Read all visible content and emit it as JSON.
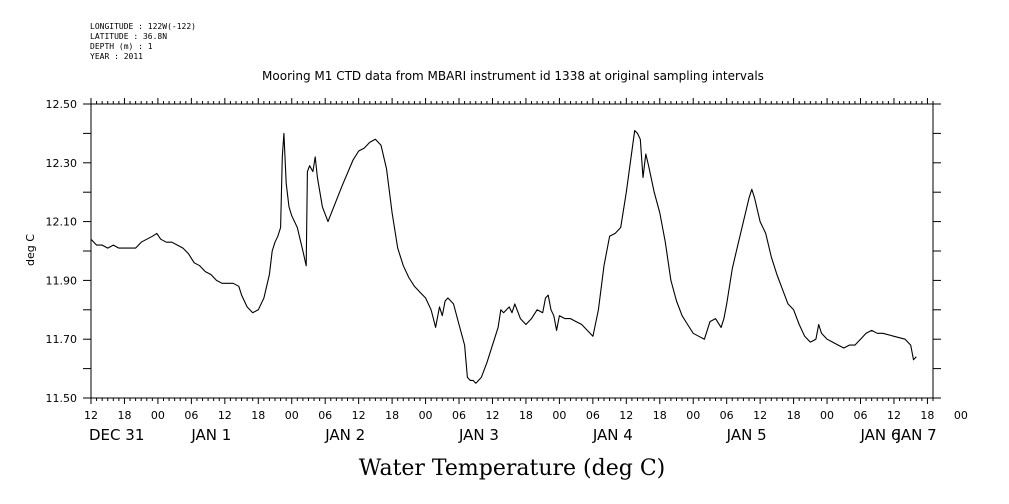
{
  "meta": {
    "longitude": "LONGITUDE : 122W(-122)",
    "latitude": "LATITUDE : 36.8N",
    "depth": "DEPTH (m) : 1",
    "year": "YEAR : 2011"
  },
  "chart_data": {
    "type": "line",
    "title": "Mooring M1 CTD data from MBARI instrument id 1338 at original sampling intervals",
    "xlabel": "Water Temperature (deg C)",
    "ylabel": "deg C",
    "ylim": [
      11.5,
      12.5
    ],
    "yticks": [
      "12.50",
      "12.30",
      "12.10",
      "11.90",
      "11.70",
      "11.50"
    ],
    "x_unit": "hours since 2010-12-31 12:00",
    "xlim": [
      0,
      151
    ],
    "xtick_labels": [
      "12",
      "18",
      "00",
      "06",
      "12",
      "18",
      "00",
      "06",
      "12",
      "18",
      "00",
      "06",
      "12",
      "18",
      "00",
      "06",
      "12",
      "18",
      "00",
      "06",
      "12",
      "18",
      "00",
      "06",
      "12",
      "18",
      "00"
    ],
    "day_labels": [
      "DEC 31",
      "JAN  1",
      "JAN  2",
      "JAN  3",
      "JAN  4",
      "JAN  5",
      "JAN  6",
      "JAN  7"
    ],
    "grid": false,
    "series": [
      {
        "points": [
          [
            0,
            12.04
          ],
          [
            1,
            12.02
          ],
          [
            2,
            12.02
          ],
          [
            3,
            12.01
          ],
          [
            4,
            12.02
          ],
          [
            5,
            12.01
          ],
          [
            6,
            12.01
          ],
          [
            7,
            12.01
          ],
          [
            8,
            12.01
          ],
          [
            9,
            12.03
          ],
          [
            10,
            12.04
          ],
          [
            11,
            12.05
          ],
          [
            11.8,
            12.06
          ],
          [
            12.5,
            12.04
          ],
          [
            13.5,
            12.03
          ],
          [
            14.5,
            12.03
          ],
          [
            15.5,
            12.02
          ],
          [
            16.5,
            12.01
          ],
          [
            17.5,
            11.99
          ],
          [
            18.5,
            11.96
          ],
          [
            19.5,
            11.95
          ],
          [
            20.5,
            11.93
          ],
          [
            21.5,
            11.92
          ],
          [
            22.5,
            11.9
          ],
          [
            23.5,
            11.89
          ],
          [
            24.5,
            11.89
          ],
          [
            25.5,
            11.89
          ],
          [
            26.5,
            11.88
          ],
          [
            27,
            11.85
          ],
          [
            28,
            11.81
          ],
          [
            29,
            11.79
          ],
          [
            30,
            11.8
          ],
          [
            31,
            11.84
          ],
          [
            32,
            11.92
          ],
          [
            32.5,
            12.0
          ],
          [
            33,
            12.03
          ],
          [
            33.5,
            12.05
          ],
          [
            34,
            12.08
          ],
          [
            34.3,
            12.32
          ],
          [
            34.6,
            12.4
          ],
          [
            35,
            12.23
          ],
          [
            35.5,
            12.15
          ],
          [
            36,
            12.12
          ],
          [
            37,
            12.08
          ],
          [
            38,
            12.0
          ],
          [
            38.6,
            11.95
          ],
          [
            38.8,
            12.27
          ],
          [
            39.2,
            12.29
          ],
          [
            39.8,
            12.27
          ],
          [
            40.2,
            12.32
          ],
          [
            40.6,
            12.25
          ],
          [
            41.5,
            12.15
          ],
          [
            42.5,
            12.1
          ],
          [
            45,
            12.22
          ],
          [
            47,
            12.31
          ],
          [
            48,
            12.34
          ],
          [
            49,
            12.35
          ],
          [
            50,
            12.37
          ],
          [
            51,
            12.38
          ],
          [
            52,
            12.36
          ],
          [
            53,
            12.28
          ],
          [
            54,
            12.13
          ],
          [
            55,
            12.01
          ],
          [
            56,
            11.95
          ],
          [
            57,
            11.91
          ],
          [
            58,
            11.88
          ],
          [
            59,
            11.86
          ],
          [
            60,
            11.84
          ],
          [
            61,
            11.8
          ],
          [
            61.8,
            11.74
          ],
          [
            62.5,
            11.81
          ],
          [
            63,
            11.78
          ],
          [
            63.5,
            11.83
          ],
          [
            64,
            11.84
          ],
          [
            65,
            11.82
          ],
          [
            66,
            11.75
          ],
          [
            67,
            11.68
          ],
          [
            67.5,
            11.57
          ],
          [
            68,
            11.56
          ],
          [
            68.5,
            11.56
          ],
          [
            69,
            11.55
          ],
          [
            70,
            11.57
          ],
          [
            71,
            11.62
          ],
          [
            72,
            11.68
          ],
          [
            73,
            11.74
          ],
          [
            73.5,
            11.8
          ],
          [
            74,
            11.79
          ],
          [
            75,
            11.81
          ],
          [
            75.5,
            11.79
          ],
          [
            76,
            11.82
          ],
          [
            77,
            11.77
          ],
          [
            78,
            11.75
          ],
          [
            79,
            11.77
          ],
          [
            80,
            11.8
          ],
          [
            81,
            11.79
          ],
          [
            81.5,
            11.84
          ],
          [
            82,
            11.85
          ],
          [
            82.5,
            11.8
          ],
          [
            83,
            11.78
          ],
          [
            83.5,
            11.73
          ],
          [
            84,
            11.78
          ],
          [
            85,
            11.77
          ],
          [
            86,
            11.77
          ],
          [
            87,
            11.76
          ],
          [
            88,
            11.75
          ],
          [
            89,
            11.73
          ],
          [
            90,
            11.71
          ],
          [
            91,
            11.8
          ],
          [
            92,
            11.95
          ],
          [
            93,
            12.05
          ],
          [
            94,
            12.06
          ],
          [
            95,
            12.08
          ],
          [
            96,
            12.2
          ],
          [
            97,
            12.34
          ],
          [
            97.5,
            12.41
          ],
          [
            98,
            12.4
          ],
          [
            98.5,
            12.38
          ],
          [
            99,
            12.25
          ],
          [
            99.5,
            12.33
          ],
          [
            100,
            12.29
          ],
          [
            101,
            12.2
          ],
          [
            102,
            12.13
          ],
          [
            103,
            12.03
          ],
          [
            104,
            11.9
          ],
          [
            105,
            11.83
          ],
          [
            106,
            11.78
          ],
          [
            107,
            11.75
          ],
          [
            108,
            11.72
          ],
          [
            109,
            11.71
          ],
          [
            110,
            11.7
          ],
          [
            111,
            11.76
          ],
          [
            112,
            11.77
          ],
          [
            113,
            11.74
          ],
          [
            113.5,
            11.77
          ],
          [
            114,
            11.82
          ],
          [
            115,
            11.94
          ],
          [
            116,
            12.02
          ],
          [
            117,
            12.1
          ],
          [
            118,
            12.18
          ],
          [
            118.5,
            12.21
          ],
          [
            119,
            12.18
          ],
          [
            120,
            12.1
          ],
          [
            121,
            12.06
          ],
          [
            122,
            11.98
          ],
          [
            123,
            11.92
          ],
          [
            124,
            11.87
          ],
          [
            125,
            11.82
          ],
          [
            126,
            11.8
          ],
          [
            127,
            11.75
          ],
          [
            128,
            11.71
          ],
          [
            129,
            11.69
          ],
          [
            130,
            11.7
          ],
          [
            130.5,
            11.75
          ],
          [
            131,
            11.72
          ],
          [
            132,
            11.7
          ],
          [
            133,
            11.69
          ],
          [
            134,
            11.68
          ],
          [
            135,
            11.67
          ],
          [
            136,
            11.68
          ],
          [
            137,
            11.68
          ],
          [
            138,
            11.7
          ],
          [
            139,
            11.72
          ],
          [
            140,
            11.73
          ],
          [
            141,
            11.72
          ],
          [
            142,
            11.72
          ],
          [
            144,
            11.71
          ],
          [
            146,
            11.7
          ],
          [
            147,
            11.68
          ],
          [
            147.5,
            11.63
          ],
          [
            148,
            11.64
          ]
        ]
      }
    ]
  }
}
